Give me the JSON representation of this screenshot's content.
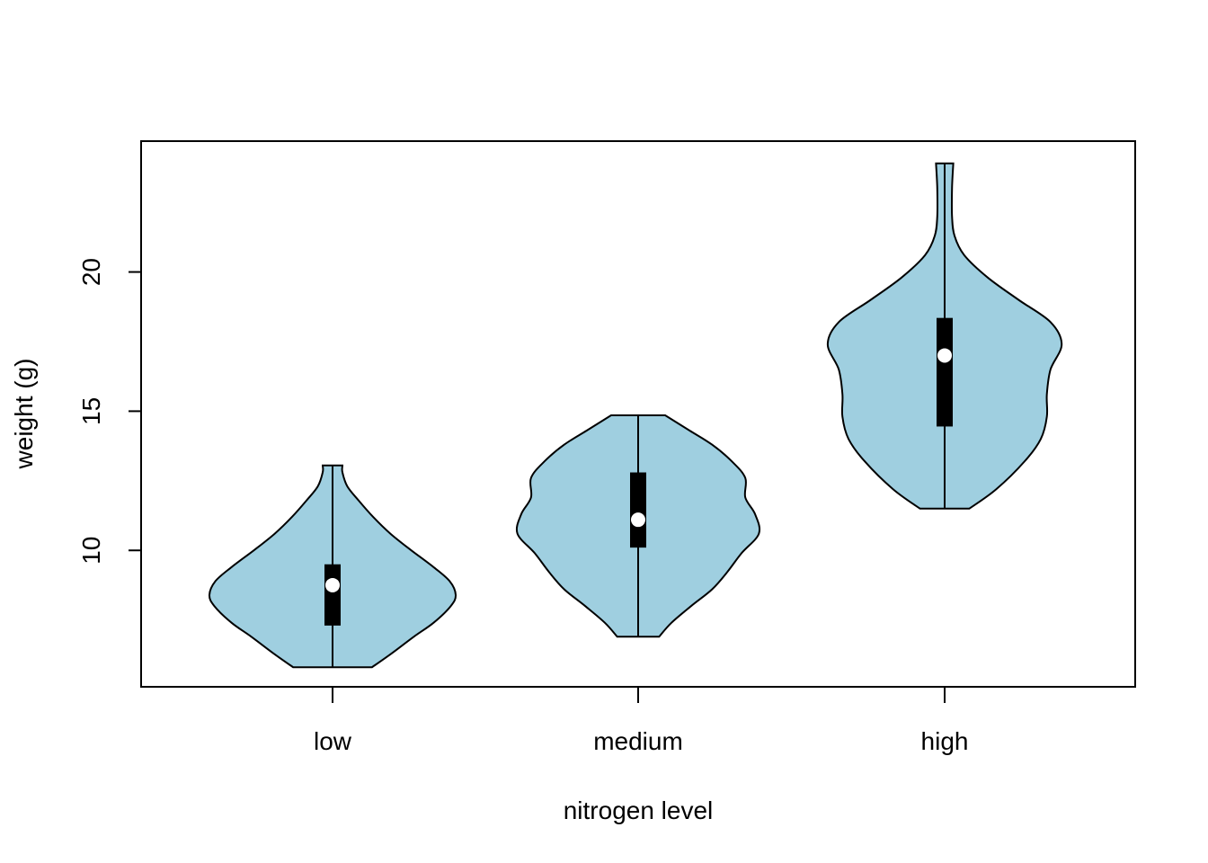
{
  "chart_data": {
    "type": "violin",
    "xlabel": "nitrogen level",
    "ylabel": "weight (g)",
    "categories": [
      "low",
      "medium",
      "high"
    ],
    "ylim": [
      5.1,
      24.7
    ],
    "yticks": [
      10,
      15,
      20
    ],
    "fill_color": "#9fcfe0",
    "stroke_color": "#000000",
    "violins": [
      {
        "category": "low",
        "min": 5.8,
        "max": 13.05,
        "q1": 7.3,
        "median": 8.75,
        "q3": 9.5,
        "profile": [
          [
            5.8,
            0.32
          ],
          [
            6.3,
            0.48
          ],
          [
            6.9,
            0.66
          ],
          [
            7.4,
            0.82
          ],
          [
            8.0,
            0.96
          ],
          [
            8.4,
            1.0
          ],
          [
            8.9,
            0.95
          ],
          [
            9.4,
            0.82
          ],
          [
            10.0,
            0.64
          ],
          [
            10.6,
            0.47
          ],
          [
            11.2,
            0.33
          ],
          [
            11.8,
            0.21
          ],
          [
            12.3,
            0.12
          ],
          [
            12.8,
            0.08
          ],
          [
            13.05,
            0.08
          ]
        ]
      },
      {
        "category": "medium",
        "min": 6.9,
        "max": 14.85,
        "q1": 10.1,
        "median": 11.1,
        "q3": 12.8,
        "profile": [
          [
            6.9,
            0.17
          ],
          [
            7.4,
            0.27
          ],
          [
            8.0,
            0.43
          ],
          [
            8.6,
            0.6
          ],
          [
            9.2,
            0.72
          ],
          [
            9.9,
            0.84
          ],
          [
            10.6,
            0.98
          ],
          [
            11.3,
            0.95
          ],
          [
            11.9,
            0.87
          ],
          [
            12.6,
            0.87
          ],
          [
            13.2,
            0.76
          ],
          [
            13.8,
            0.6
          ],
          [
            14.3,
            0.42
          ],
          [
            14.85,
            0.22
          ]
        ]
      },
      {
        "category": "high",
        "min": 11.5,
        "max": 23.9,
        "q1": 14.45,
        "median": 17.0,
        "q3": 18.35,
        "profile": [
          [
            11.5,
            0.2
          ],
          [
            12.2,
            0.42
          ],
          [
            13.2,
            0.65
          ],
          [
            14.0,
            0.78
          ],
          [
            14.8,
            0.83
          ],
          [
            15.6,
            0.83
          ],
          [
            16.5,
            0.86
          ],
          [
            17.4,
            0.95
          ],
          [
            18.2,
            0.86
          ],
          [
            19.0,
            0.6
          ],
          [
            19.8,
            0.35
          ],
          [
            20.6,
            0.16
          ],
          [
            21.3,
            0.08
          ],
          [
            22.0,
            0.06
          ],
          [
            23.0,
            0.06
          ],
          [
            23.9,
            0.07
          ]
        ]
      }
    ]
  }
}
